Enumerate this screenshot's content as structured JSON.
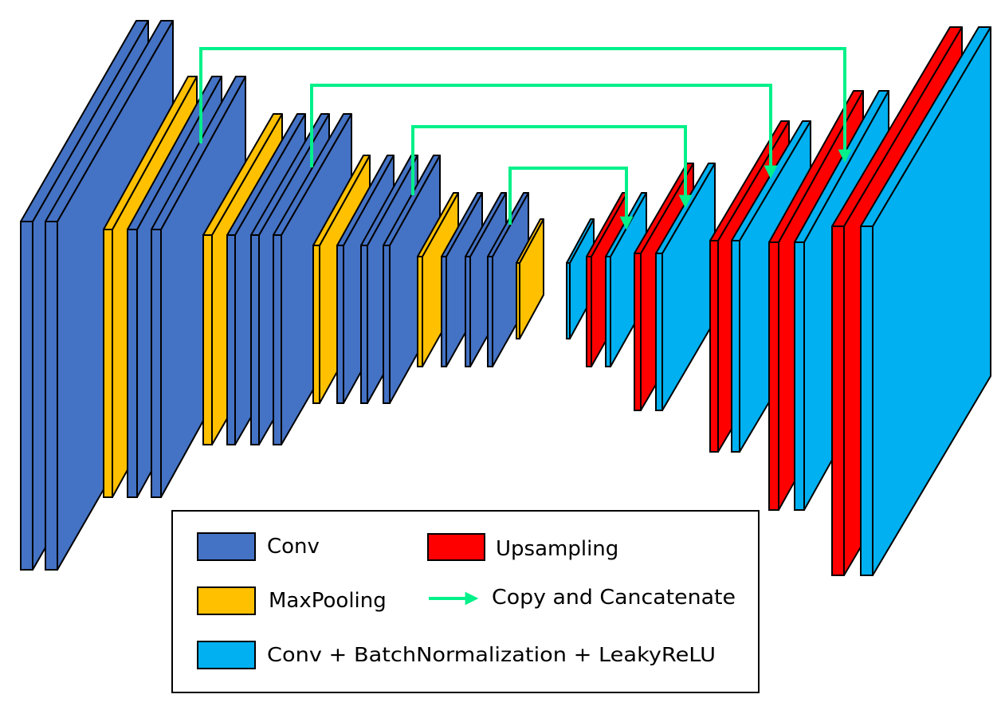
{
  "colors": {
    "conv": "#4472C4",
    "maxpool": "#FFC000",
    "upsampling": "#FF0000",
    "conv_bn": "#00B0F0",
    "skip_arrow": "#00F08A",
    "outline": "#000000"
  },
  "legend": {
    "conv": "Conv",
    "maxpooling": "MaxPooling",
    "conv_bn_leaky": "Conv + BatchNormalization + LeakyReLU",
    "upsampling": "Upsampling",
    "copy_concat": "Copy and Cancatenate"
  }
}
